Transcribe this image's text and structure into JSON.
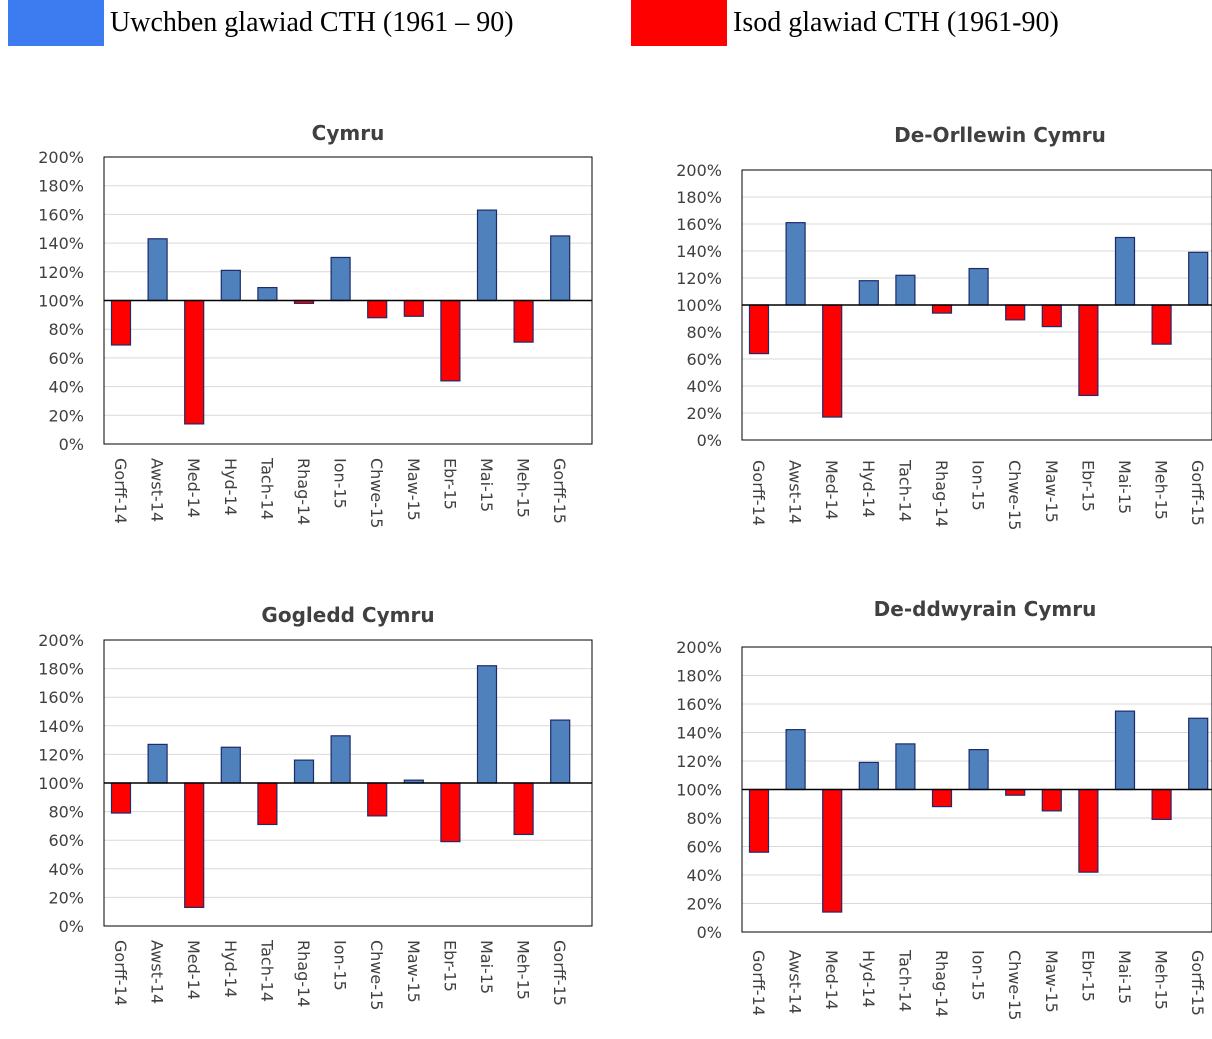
{
  "legend": {
    "above": {
      "label": "Uwchben glawiad CTH (1961 – 90)",
      "color": "#3D7BF0"
    },
    "below": {
      "label": "Isod glawiad CTH (1961-90)",
      "color": "#FF0000"
    }
  },
  "colors": {
    "above_bar": "#4F81BD",
    "below_bar": "#FF0000",
    "bar_outline": "#1F2A6B"
  },
  "chart_data": [
    {
      "type": "bar",
      "title": "Cymru",
      "categories": [
        "Gorff-14",
        "Awst-14",
        "Med-14",
        "Hyd-14",
        "Tach-14",
        "Rhag-14",
        "Ion-15",
        "Chwe-15",
        "Maw-15",
        "Ebr-15",
        "Mai-15",
        "Meh-15",
        "Gorff-15"
      ],
      "values": [
        69,
        143,
        14,
        121,
        109,
        98,
        130,
        88,
        89,
        44,
        163,
        71,
        145
      ],
      "baseline": 100,
      "ylim": [
        0,
        200
      ],
      "yticks": [
        "0%",
        "20%",
        "40%",
        "60%",
        "80%",
        "100%",
        "120%",
        "140%",
        "160%",
        "180%",
        "200%"
      ],
      "grid": true
    },
    {
      "type": "bar",
      "title": "De-Orllewin Cymru",
      "categories": [
        "Gorff-14",
        "Awst-14",
        "Med-14",
        "Hyd-14",
        "Tach-14",
        "Rhag-14",
        "Ion-15",
        "Chwe-15",
        "Maw-15",
        "Ebr-15",
        "Mai-15",
        "Meh-15",
        "Gorff-15"
      ],
      "values": [
        64,
        161,
        17,
        118,
        122,
        94,
        127,
        89,
        84,
        33,
        150,
        71,
        139
      ],
      "baseline": 100,
      "ylim": [
        0,
        200
      ],
      "yticks": [
        "0%",
        "20%",
        "40%",
        "60%",
        "80%",
        "100%",
        "120%",
        "140%",
        "160%",
        "180%",
        "200%"
      ],
      "grid": true
    },
    {
      "type": "bar",
      "title": "Gogledd Cymru",
      "categories": [
        "Gorff-14",
        "Awst-14",
        "Med-14",
        "Hyd-14",
        "Tach-14",
        "Rhag-14",
        "Ion-15",
        "Chwe-15",
        "Maw-15",
        "Ebr-15",
        "Mai-15",
        "Meh-15",
        "Gorff-15"
      ],
      "values": [
        79,
        127,
        13,
        125,
        71,
        116,
        133,
        77,
        102,
        59,
        182,
        64,
        144
      ],
      "baseline": 100,
      "ylim": [
        0,
        200
      ],
      "yticks": [
        "0%",
        "20%",
        "40%",
        "60%",
        "80%",
        "100%",
        "120%",
        "140%",
        "160%",
        "180%",
        "200%"
      ],
      "grid": true
    },
    {
      "type": "bar",
      "title": "De-ddwyrain Cymru",
      "categories": [
        "Gorff-14",
        "Awst-14",
        "Med-14",
        "Hyd-14",
        "Tach-14",
        "Rhag-14",
        "Ion-15",
        "Chwe-15",
        "Maw-15",
        "Ebr-15",
        "Mai-15",
        "Meh-15",
        "Gorff-15"
      ],
      "values": [
        56,
        142,
        14,
        119,
        132,
        88,
        128,
        96,
        85,
        42,
        155,
        79,
        150
      ],
      "baseline": 100,
      "ylim": [
        0,
        200
      ],
      "yticks": [
        "0%",
        "20%",
        "40%",
        "60%",
        "80%",
        "100%",
        "120%",
        "140%",
        "160%",
        "180%",
        "200%"
      ],
      "grid": true
    }
  ]
}
